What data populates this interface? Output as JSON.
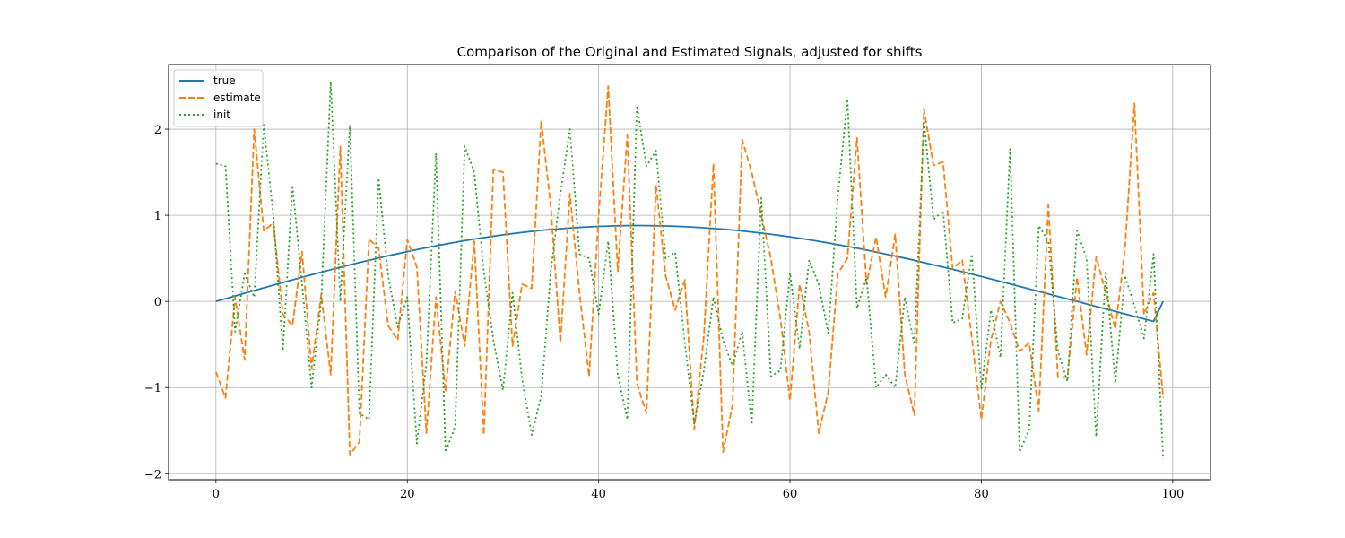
{
  "chart_data": {
    "type": "line",
    "title": "Comparison of the Original and Estimated Signals, adjusted for shifts",
    "xlabel": "",
    "ylabel": "",
    "xlim": [
      -4.95,
      103.95
    ],
    "ylim": [
      -2.07,
      2.75
    ],
    "grid": true,
    "legend_position": "top-left",
    "x_ticks": [
      0,
      20,
      40,
      60,
      80,
      100
    ],
    "x_tick_labels": [
      "0",
      "20",
      "40",
      "60",
      "80",
      "100"
    ],
    "y_ticks": [
      -2,
      -1,
      0,
      1,
      2
    ],
    "y_tick_labels": [
      "−2",
      "−1",
      "0",
      "1",
      "2"
    ],
    "x": [
      0,
      1,
      2,
      3,
      4,
      5,
      6,
      7,
      8,
      9,
      10,
      11,
      12,
      13,
      14,
      15,
      16,
      17,
      18,
      19,
      20,
      21,
      22,
      23,
      24,
      25,
      26,
      27,
      28,
      29,
      30,
      31,
      32,
      33,
      34,
      35,
      36,
      37,
      38,
      39,
      40,
      41,
      42,
      43,
      44,
      45,
      46,
      47,
      48,
      49,
      50,
      51,
      52,
      53,
      54,
      55,
      56,
      57,
      58,
      59,
      60,
      61,
      62,
      63,
      64,
      65,
      66,
      67,
      68,
      69,
      70,
      71,
      72,
      73,
      74,
      75,
      76,
      77,
      78,
      79,
      80,
      81,
      82,
      83,
      84,
      85,
      86,
      87,
      88,
      89,
      90,
      91,
      92,
      93,
      94,
      95,
      96,
      97,
      98,
      99
    ],
    "series": [
      {
        "name": "true",
        "style": "solid",
        "color": "#1f77b4",
        "values": [
          0.0,
          0.032,
          0.063,
          0.095,
          0.127,
          0.158,
          0.189,
          0.22,
          0.25,
          0.28,
          0.31,
          0.339,
          0.368,
          0.397,
          0.425,
          0.452,
          0.478,
          0.504,
          0.53,
          0.554,
          0.578,
          0.602,
          0.624,
          0.646,
          0.666,
          0.686,
          0.706,
          0.724,
          0.741,
          0.757,
          0.773,
          0.787,
          0.801,
          0.813,
          0.825,
          0.835,
          0.844,
          0.853,
          0.86,
          0.866,
          0.871,
          0.875,
          0.878,
          0.88,
          0.881,
          0.88,
          0.879,
          0.876,
          0.873,
          0.868,
          0.862,
          0.855,
          0.847,
          0.839,
          0.829,
          0.818,
          0.806,
          0.793,
          0.78,
          0.765,
          0.75,
          0.733,
          0.716,
          0.698,
          0.679,
          0.659,
          0.639,
          0.618,
          0.596,
          0.573,
          0.55,
          0.526,
          0.502,
          0.477,
          0.451,
          0.425,
          0.399,
          0.372,
          0.345,
          0.317,
          0.289,
          0.261,
          0.232,
          0.203,
          0.174,
          0.145,
          0.116,
          0.087,
          0.058,
          0.029,
          0.0,
          -0.029,
          -0.058,
          -0.087,
          -0.116,
          -0.145,
          -0.174,
          -0.203,
          -0.232,
          0.0
        ]
      },
      {
        "name": "estimate",
        "style": "dashed",
        "color": "#ff7f0e",
        "values": [
          -0.82,
          -1.12,
          0.05,
          -0.68,
          2.0,
          0.82,
          0.91,
          -0.15,
          -0.28,
          0.58,
          -0.78,
          0.08,
          -0.85,
          1.8,
          -1.78,
          -1.63,
          0.72,
          0.62,
          -0.28,
          -0.45,
          0.72,
          0.4,
          -1.53,
          0.05,
          -1.05,
          0.12,
          -0.52,
          0.7,
          -1.55,
          1.53,
          1.5,
          -0.52,
          0.2,
          0.15,
          2.1,
          1.1,
          -0.48,
          1.25,
          0.1,
          -0.87,
          1.0,
          2.5,
          0.35,
          1.93,
          -0.95,
          -1.3,
          1.35,
          0.3,
          -0.1,
          0.25,
          -1.48,
          -0.4,
          1.6,
          -1.75,
          -1.2,
          1.88,
          1.5,
          1.0,
          0.5,
          -0.2,
          -1.15,
          0.2,
          -0.35,
          -1.53,
          -1.05,
          0.32,
          0.5,
          1.9,
          0.2,
          0.75,
          0.05,
          0.78,
          -0.85,
          -1.32,
          2.23,
          1.58,
          1.62,
          0.38,
          0.48,
          -0.42,
          -1.37,
          -0.45,
          0.0,
          -0.25,
          -0.58,
          -0.48,
          -1.27,
          1.12,
          -0.88,
          -0.88,
          0.28,
          -0.62,
          0.52,
          0.1,
          -0.32,
          0.6,
          2.3,
          -0.15,
          0.1,
          -1.12
        ]
      },
      {
        "name": "init",
        "style": "dotted",
        "color": "#2ca02c",
        "values": [
          1.6,
          1.57,
          -0.35,
          0.32,
          0.05,
          2.05,
          1.0,
          -0.57,
          1.35,
          0.2,
          -1.0,
          0.0,
          2.55,
          0.0,
          2.05,
          -1.3,
          -1.37,
          1.43,
          0.3,
          -0.3,
          0.05,
          -1.65,
          -0.72,
          1.72,
          -1.75,
          -1.45,
          1.8,
          1.5,
          0.35,
          -0.45,
          -1.03,
          0.1,
          -0.9,
          -1.55,
          -1.1,
          0.35,
          1.25,
          2.0,
          0.55,
          0.5,
          -0.15,
          0.7,
          -0.85,
          -1.37,
          2.27,
          1.57,
          1.75,
          0.5,
          0.57,
          -0.47,
          -1.42,
          -0.8,
          0.05,
          -0.45,
          -0.75,
          -0.35,
          -1.43,
          1.2,
          -0.87,
          -0.8,
          0.33,
          -0.55,
          0.48,
          0.2,
          -0.37,
          1.22,
          2.35,
          -0.08,
          0.28,
          -1.0,
          -0.85,
          -1.0,
          0.05,
          -0.5,
          2.1,
          0.95,
          1.05,
          -0.25,
          -0.2,
          0.55,
          -1.02,
          -0.1,
          -0.65,
          1.77,
          -1.75,
          -1.48,
          0.88,
          0.7,
          -0.58,
          -0.93,
          0.82,
          0.5,
          -1.57,
          0.35,
          -0.95,
          0.3,
          -0.05,
          -0.43,
          0.55,
          -1.83
        ]
      }
    ]
  }
}
